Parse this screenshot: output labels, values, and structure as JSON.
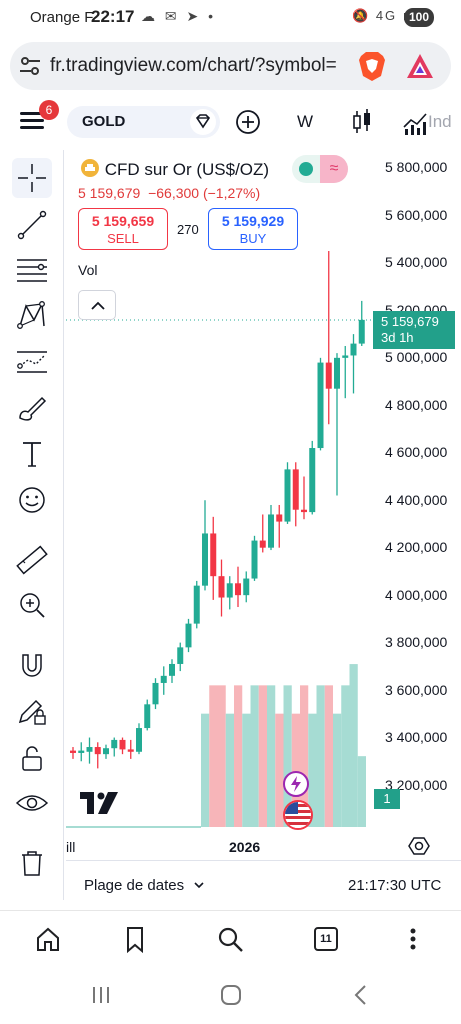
{
  "status_bar": {
    "carrier": "Orange F",
    "time": "22:17",
    "network": "4G",
    "battery": "100"
  },
  "browser": {
    "url": "fr.tradingview.com/chart/?symbol=",
    "tab_count": "11"
  },
  "toolbar": {
    "notification_count": "6",
    "symbol": "GOLD",
    "interval": "W",
    "indicators_label": "Ind"
  },
  "legend": {
    "title": "CFD sur Or (US$/OZ)",
    "price": "5 159,679",
    "change": "−66,300",
    "change_pct": "(−1,27%)",
    "sell_price": "5 159,659",
    "sell_label": "SELL",
    "spread": "270",
    "buy_price": "5 159,929",
    "buy_label": "BUY",
    "volume_label": "Vol"
  },
  "colors": {
    "up": "#22ab94",
    "down": "#f23645",
    "vol_up": "#a6dcd3",
    "vol_down": "#f7b5b9"
  },
  "y_axis": {
    "labels": [
      "5 800,000",
      "5 600,000",
      "5 400,000",
      "5 200,000",
      "5 000,000",
      "4 800,000",
      "4 600,000",
      "4 400,000",
      "4 200,000",
      "4 000,000",
      "3 800,000",
      "3 600,000",
      "3 400,000",
      "3 200,000"
    ],
    "current_price": "5 159,679",
    "countdown": "3d 1h",
    "volume_marker": "1"
  },
  "x_axis": {
    "labels": [
      "ill",
      "2026"
    ]
  },
  "bottom": {
    "date_range": "Plage de dates",
    "clock": "21:17:30 UTC"
  },
  "chart_data": {
    "type": "candlestick",
    "title": "CFD sur Or (US$/OZ)",
    "ylim": [
      3150,
      5850
    ],
    "candles": [
      {
        "o": 3345,
        "h": 3360,
        "l": 3310,
        "c": 3335
      },
      {
        "o": 3335,
        "h": 3380,
        "l": 3300,
        "c": 3345
      },
      {
        "o": 3340,
        "h": 3400,
        "l": 3290,
        "c": 3360
      },
      {
        "o": 3360,
        "h": 3380,
        "l": 3270,
        "c": 3330
      },
      {
        "o": 3330,
        "h": 3370,
        "l": 3310,
        "c": 3355
      },
      {
        "o": 3355,
        "h": 3400,
        "l": 3320,
        "c": 3390
      },
      {
        "o": 3390,
        "h": 3400,
        "l": 3330,
        "c": 3350
      },
      {
        "o": 3350,
        "h": 3390,
        "l": 3310,
        "c": 3340
      },
      {
        "o": 3340,
        "h": 3460,
        "l": 3330,
        "c": 3440
      },
      {
        "o": 3440,
        "h": 3560,
        "l": 3430,
        "c": 3540
      },
      {
        "o": 3540,
        "h": 3650,
        "l": 3520,
        "c": 3630
      },
      {
        "o": 3630,
        "h": 3700,
        "l": 3580,
        "c": 3660
      },
      {
        "o": 3660,
        "h": 3730,
        "l": 3630,
        "c": 3710
      },
      {
        "o": 3710,
        "h": 3800,
        "l": 3680,
        "c": 3780
      },
      {
        "o": 3780,
        "h": 3900,
        "l": 3760,
        "c": 3880
      },
      {
        "o": 3880,
        "h": 4060,
        "l": 3860,
        "c": 4040
      },
      {
        "o": 4040,
        "h": 4400,
        "l": 4020,
        "c": 4260
      },
      {
        "o": 4260,
        "h": 4330,
        "l": 3980,
        "c": 4080
      },
      {
        "o": 4080,
        "h": 4150,
        "l": 3910,
        "c": 3990
      },
      {
        "o": 3990,
        "h": 4080,
        "l": 3940,
        "c": 4050
      },
      {
        "o": 4050,
        "h": 4120,
        "l": 3950,
        "c": 4000
      },
      {
        "o": 4000,
        "h": 4100,
        "l": 3970,
        "c": 4070
      },
      {
        "o": 4070,
        "h": 4250,
        "l": 4060,
        "c": 4230
      },
      {
        "o": 4230,
        "h": 4340,
        "l": 4180,
        "c": 4200
      },
      {
        "o": 4200,
        "h": 4380,
        "l": 4190,
        "c": 4340
      },
      {
        "o": 4340,
        "h": 4380,
        "l": 4200,
        "c": 4310
      },
      {
        "o": 4310,
        "h": 4560,
        "l": 4300,
        "c": 4530
      },
      {
        "o": 4530,
        "h": 4560,
        "l": 4290,
        "c": 4360
      },
      {
        "o": 4360,
        "h": 4500,
        "l": 4320,
        "c": 4350
      },
      {
        "o": 4350,
        "h": 4650,
        "l": 4340,
        "c": 4620
      },
      {
        "o": 4620,
        "h": 5000,
        "l": 4610,
        "c": 4980
      },
      {
        "o": 4980,
        "h": 5450,
        "l": 4720,
        "c": 4870
      },
      {
        "o": 4870,
        "h": 5020,
        "l": 4420,
        "c": 5000
      },
      {
        "o": 5000,
        "h": 5050,
        "l": 4830,
        "c": 5010
      },
      {
        "o": 5010,
        "h": 5100,
        "l": 4850,
        "c": 5060
      },
      {
        "o": 5060,
        "h": 5240,
        "l": 5050,
        "c": 5160
      }
    ],
    "volume_start_index": 16,
    "volume": [
      0.8,
      1,
      1,
      0.8,
      1,
      0.8,
      1,
      1,
      1,
      0.8,
      1,
      0.8,
      1,
      0.8,
      1,
      1,
      0.8,
      1,
      1.15,
      0.5
    ],
    "volume_max": 1.2,
    "last_price": 5159.679
  }
}
